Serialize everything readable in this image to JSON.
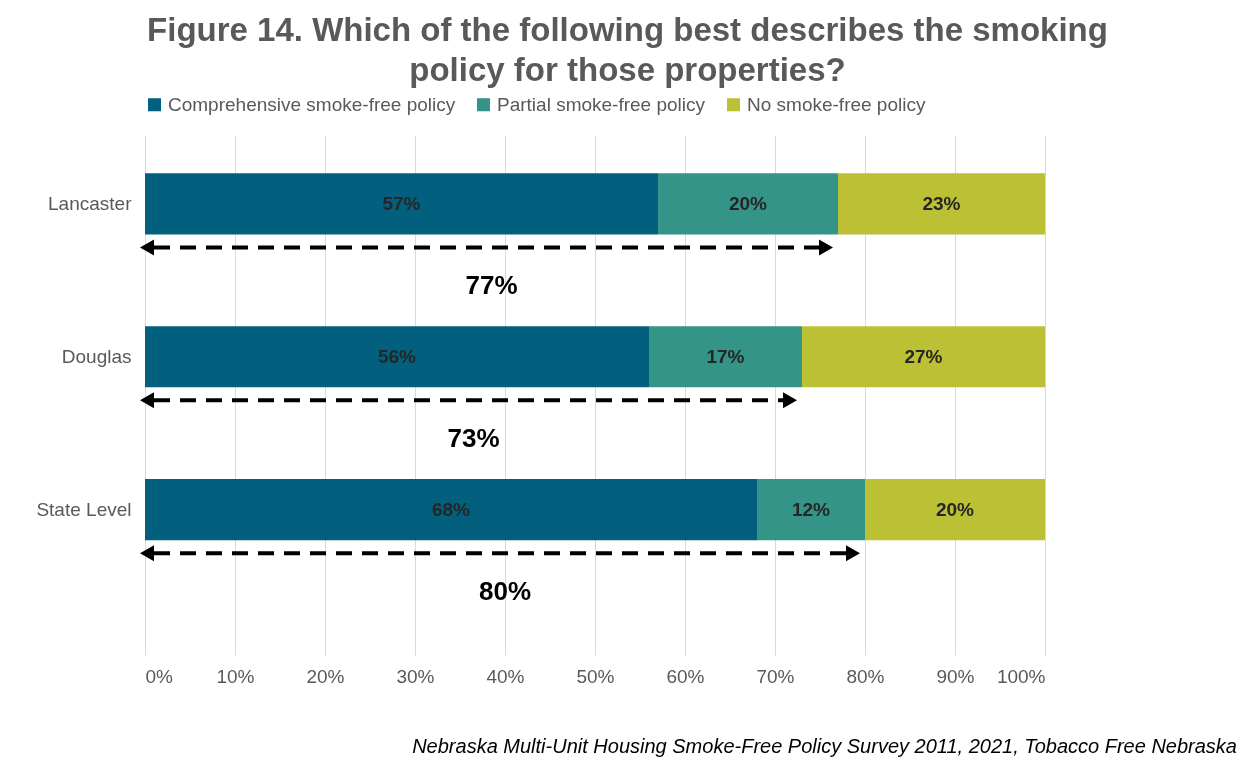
{
  "chart_data": {
    "type": "bar",
    "title": "Figure 14. Which of the following best describes the smoking policy for those properties?",
    "orientation": "horizontal",
    "stacked": true,
    "categories": [
      "Lancaster",
      "Douglas",
      "State Level"
    ],
    "series": [
      {
        "name": "Comprehensive smoke-free policy",
        "color": "#02607e",
        "values": [
          57,
          56,
          68
        ],
        "value_labels": [
          "57%",
          "56%",
          "68%"
        ]
      },
      {
        "name": "Partial smoke-free policy",
        "color": "#339487",
        "values": [
          20,
          17,
          12
        ],
        "value_labels": [
          "20%",
          "17%",
          "12%"
        ]
      },
      {
        "name": "No smoke-free policy",
        "color": "#bcc034",
        "values": [
          23,
          27,
          20
        ],
        "value_labels": [
          "23%",
          "27%",
          "20%"
        ]
      }
    ],
    "xlim": [
      0,
      100
    ],
    "xticks": [
      {
        "value": 0,
        "label": "0%"
      },
      {
        "value": 10,
        "label": "10%"
      },
      {
        "value": 20,
        "label": "20%"
      },
      {
        "value": 30,
        "label": "30%"
      },
      {
        "value": 40,
        "label": "40%"
      },
      {
        "value": 50,
        "label": "50%"
      },
      {
        "value": 60,
        "label": "60%"
      },
      {
        "value": 70,
        "label": "70%"
      },
      {
        "value": 80,
        "label": "80%"
      },
      {
        "value": 90,
        "label": "90%"
      },
      {
        "value": 100,
        "label": "100%"
      }
    ],
    "grid": "x",
    "legend": "top",
    "annotations": [
      "77%",
      "73%",
      "80%",
      "Nebraska Multi-Unit Housing Smoke-Free Policy Survey 2011, 2021, Tobacco Free Nebraska"
    ]
  }
}
